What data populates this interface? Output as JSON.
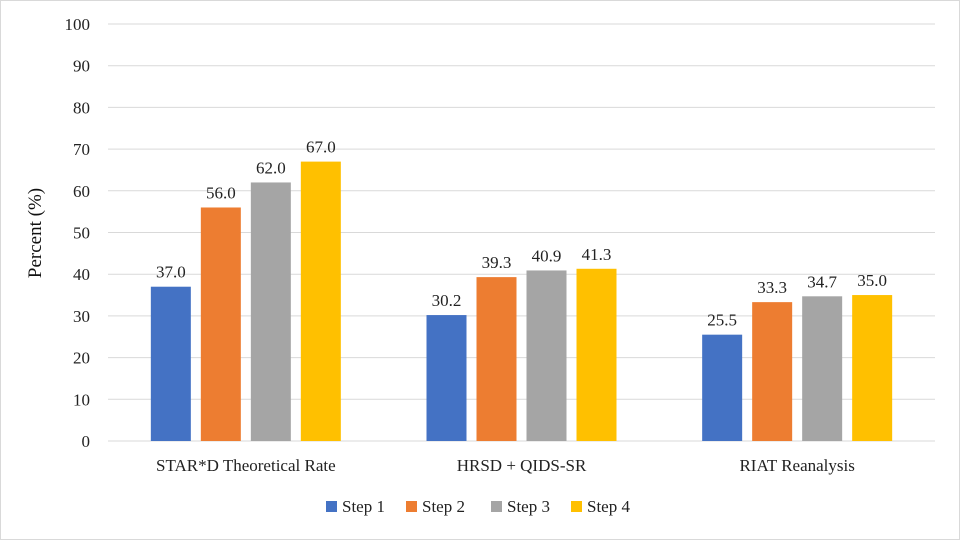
{
  "chart_data": {
    "type": "bar",
    "title": "",
    "xlabel": "",
    "ylabel": "Percent (%)",
    "ylim": [
      0,
      100
    ],
    "yticks": [
      0,
      10,
      20,
      30,
      40,
      50,
      60,
      70,
      80,
      90,
      100
    ],
    "grid": true,
    "legend_position": "bottom",
    "categories": [
      "STAR*D Theoretical Rate",
      "HRSD + QIDS-SR",
      "RIAT Reanalysis"
    ],
    "series": [
      {
        "name": "Step 1",
        "color": "#4472C4",
        "values": [
          37.0,
          30.2,
          25.5
        ],
        "labels": [
          "37.0",
          "30.2",
          "25.5"
        ]
      },
      {
        "name": "Step 2",
        "color": "#ED7D31",
        "values": [
          56.0,
          39.3,
          33.3
        ],
        "labels": [
          "56.0",
          "39.3",
          "33.3"
        ]
      },
      {
        "name": "Step 3",
        "color": "#A5A5A5",
        "values": [
          62.0,
          40.9,
          34.7
        ],
        "labels": [
          "62.0",
          "40.9",
          "34.7"
        ]
      },
      {
        "name": "Step 4",
        "color": "#FFC000",
        "values": [
          67.0,
          41.3,
          35.0
        ],
        "labels": [
          "67.0",
          "41.3",
          "35.0"
        ]
      }
    ]
  }
}
